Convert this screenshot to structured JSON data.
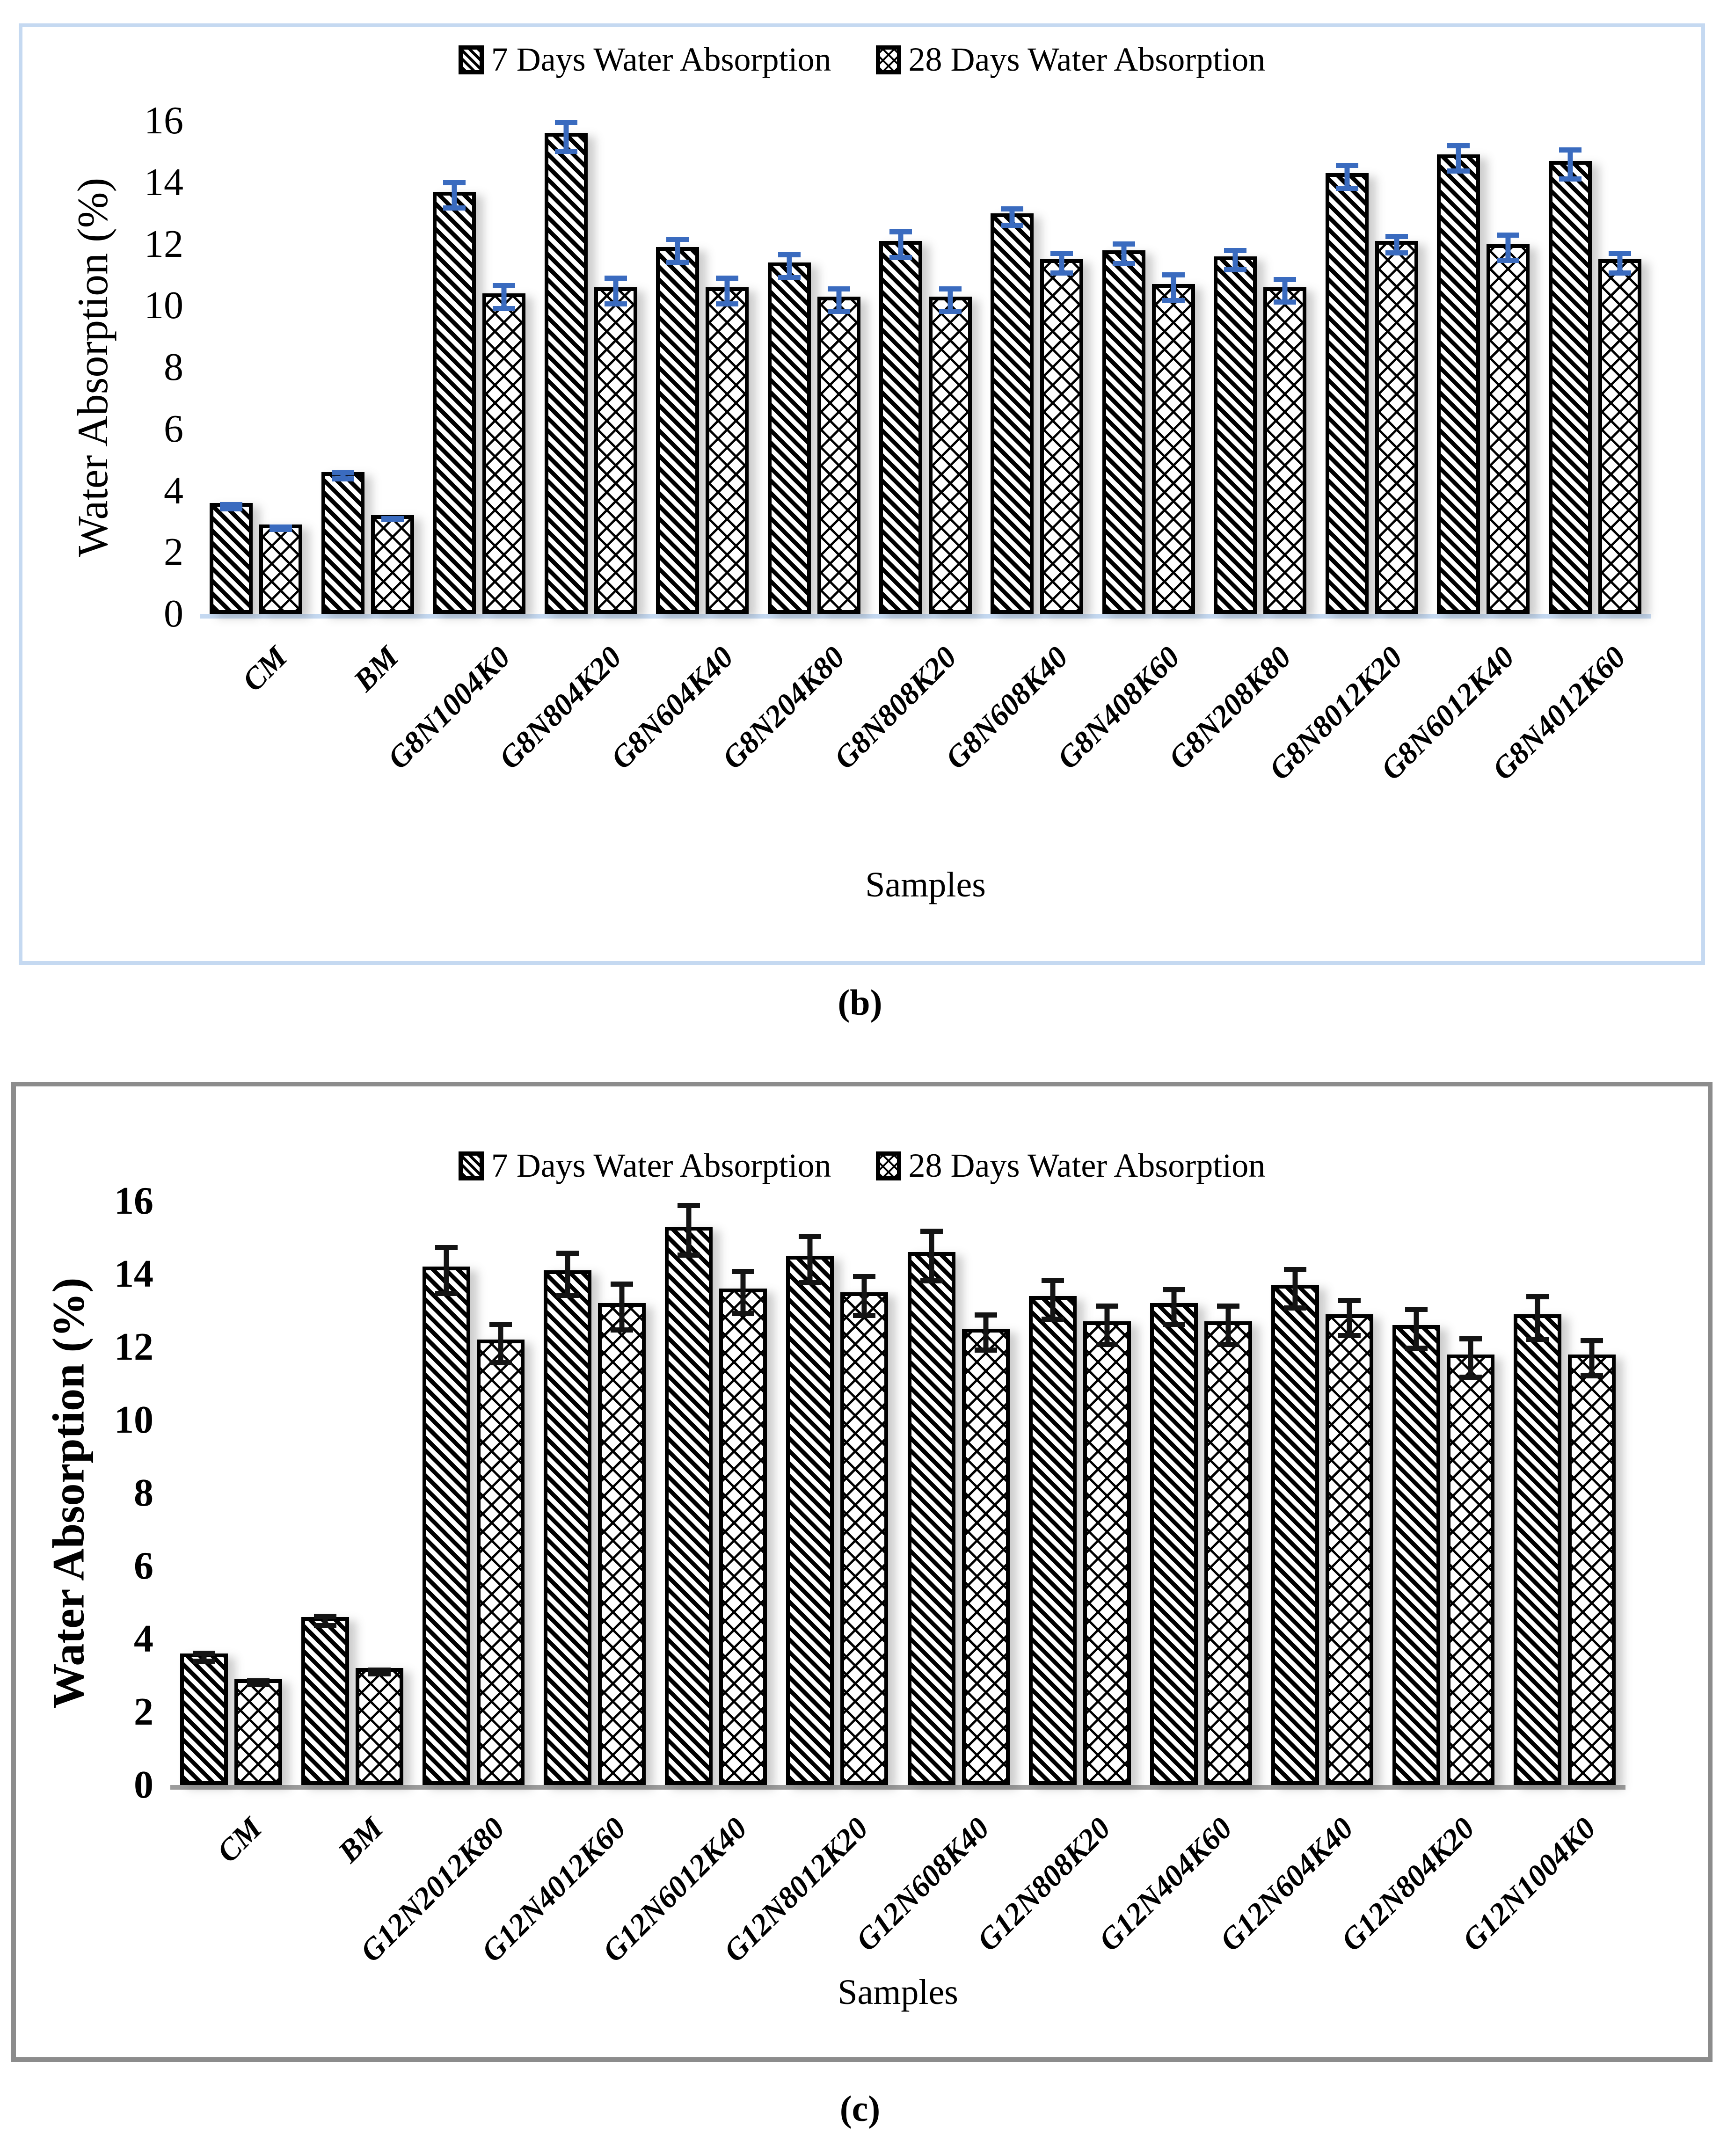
{
  "legend": {
    "series1_label": "7 Days Water Absorption",
    "series2_label": "28 Days Water Absorption"
  },
  "colors": {
    "panel_b_frame": "#C5D9F1",
    "panel_b_axis_line": "#C5D9F1",
    "panel_b_error_bar": "#3A6BBF",
    "panel_c_frame": "#8C8C8C",
    "panel_c_axis_line": "#9C9C9C",
    "panel_c_error_bar": "#141414",
    "bar_outline": "#000000",
    "bar_fill": "#FFFFFF"
  },
  "chart_data": [
    {
      "id": "b",
      "panel_label": "(b)",
      "type": "bar",
      "title": "",
      "xlabel": "Samples",
      "ylabel": "Water Absorption (%)",
      "ylim": [
        0,
        16
      ],
      "yticks": [
        0,
        2,
        4,
        6,
        8,
        10,
        12,
        14,
        16
      ],
      "grid": false,
      "legend_position": "top-center",
      "categories": [
        "CM",
        "BM",
        "G8N1004K0",
        "G8N804K20",
        "G8N604K40",
        "G8N204K80",
        "G8N808K20",
        "G8N608K40",
        "G8N408K60",
        "G8N208K80",
        "G8N8012K20",
        "G8N6012K40",
        "G8N4012K60"
      ],
      "series": [
        {
          "name": "7 Days Water Absorption",
          "pattern": "diagonal-hatch",
          "values": [
            3.6,
            4.6,
            13.7,
            15.6,
            11.9,
            11.4,
            12.1,
            13.0,
            11.8,
            11.6,
            14.3,
            14.9,
            14.7
          ],
          "errors": [
            0.15,
            0.18,
            0.5,
            0.55,
            0.45,
            0.45,
            0.5,
            0.35,
            0.4,
            0.4,
            0.45,
            0.5,
            0.55
          ]
        },
        {
          "name": "28 Days Water Absorption",
          "pattern": "diamond-crosshatch",
          "values": [
            2.9,
            3.2,
            10.4,
            10.6,
            10.6,
            10.3,
            10.3,
            11.5,
            10.7,
            10.6,
            12.1,
            12.0,
            11.5
          ],
          "errors": [
            0.12,
            0.1,
            0.45,
            0.5,
            0.5,
            0.45,
            0.45,
            0.4,
            0.5,
            0.45,
            0.35,
            0.5,
            0.4
          ]
        }
      ],
      "style": {
        "error_bar_color": "#3A6BBF",
        "frame_color": "#C5D9F1",
        "axis_line_color": "#C5D9F1",
        "bold_axis_text": false
      }
    },
    {
      "id": "c",
      "panel_label": "(c)",
      "type": "bar",
      "title": "",
      "xlabel": "Samples",
      "ylabel": "Water Absorption (%)",
      "ylim": [
        0,
        16
      ],
      "yticks": [
        0,
        2,
        4,
        6,
        8,
        10,
        12,
        14,
        16
      ],
      "grid": false,
      "legend_position": "top-center",
      "categories": [
        "CM",
        "BM",
        "G12N2012K80",
        "G12N4012K60",
        "G12N6012K40",
        "G12N8012K20",
        "G12N608K40",
        "G12N808K20",
        "G12N404K60",
        "G12N604K40",
        "G12N804K20",
        "G12N1004K0"
      ],
      "series": [
        {
          "name": "7 Days Water Absorption",
          "pattern": "diagonal-hatch",
          "values": [
            3.6,
            4.6,
            14.2,
            14.1,
            15.3,
            14.5,
            14.6,
            13.4,
            13.2,
            13.7,
            12.6,
            12.9
          ],
          "errors": [
            0.18,
            0.2,
            0.7,
            0.65,
            0.75,
            0.7,
            0.75,
            0.6,
            0.55,
            0.6,
            0.6,
            0.65
          ]
        },
        {
          "name": "28 Days Water Absorption",
          "pattern": "diamond-crosshatch",
          "values": [
            2.9,
            3.2,
            12.2,
            13.2,
            13.6,
            13.5,
            12.5,
            12.7,
            12.7,
            12.9,
            11.8,
            11.8
          ],
          "errors": [
            0.12,
            0.12,
            0.6,
            0.7,
            0.65,
            0.6,
            0.55,
            0.6,
            0.6,
            0.55,
            0.6,
            0.55
          ]
        }
      ],
      "style": {
        "error_bar_color": "#141414",
        "frame_color": "#8C8C8C",
        "axis_line_color": "#9C9C9C",
        "bold_axis_text": true
      }
    }
  ]
}
